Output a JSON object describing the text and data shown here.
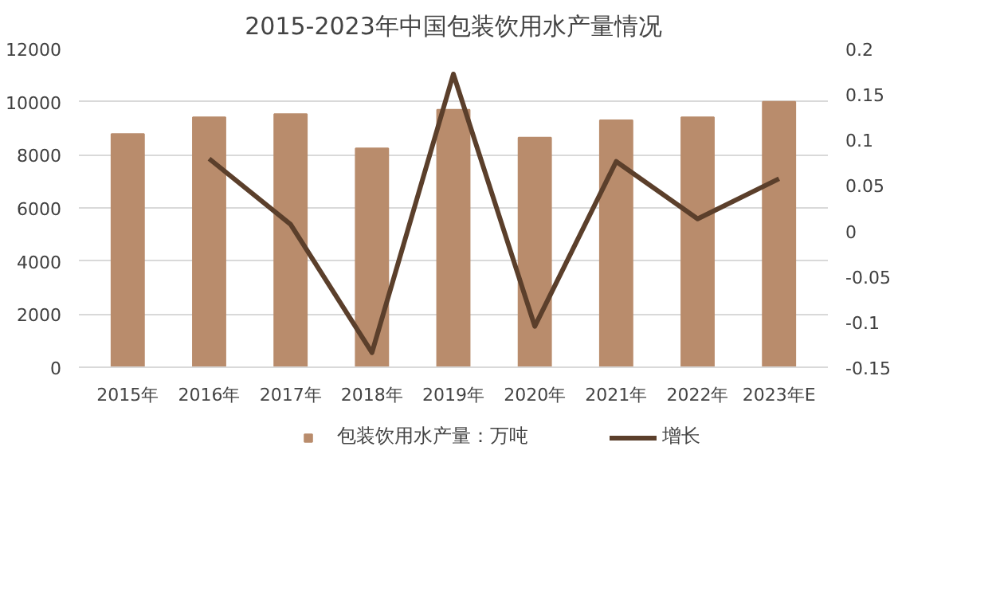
{
  "chart_data": {
    "type": "bar",
    "title": "2015-2023年中国包装饮用水产量情况",
    "categories": [
      "2015年",
      "2016年",
      "2017年",
      "2018年",
      "2019年",
      "2020年",
      "2021年",
      "2022年",
      "2023年E"
    ],
    "series": [
      {
        "name": "包装饮用水产量：万吨",
        "color": "#b98c6c",
        "values": [
          8780,
          9410,
          9530,
          8240,
          9700,
          8650,
          9300,
          9410,
          10000
        ]
      },
      {
        "name": "增长",
        "type": "line",
        "axis": "y2",
        "color": "#5b3f2b",
        "values": [
          null,
          0.079,
          0.007,
          -0.134,
          0.172,
          -0.105,
          0.076,
          0.013,
          0.057
        ]
      }
    ],
    "ylim": [
      0,
      12000
    ],
    "yticks": [
      0,
      2000,
      4000,
      6000,
      8000,
      10000,
      12000
    ],
    "y2lim": [
      -0.15,
      0.2
    ],
    "y2ticks": [
      -0.15,
      -0.1,
      -0.05,
      0,
      0.05,
      0.1,
      0.15,
      0.2
    ],
    "grid": "y",
    "legend": "bottom",
    "marker": "none",
    "line_style": "solid"
  }
}
